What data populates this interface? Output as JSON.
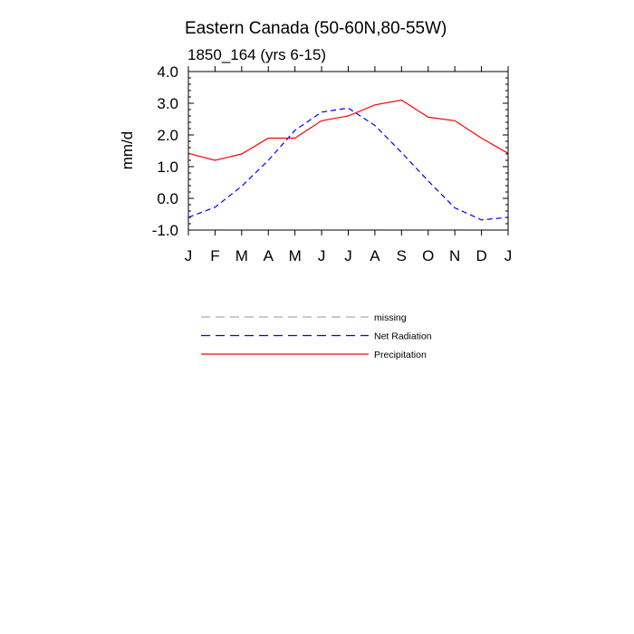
{
  "chart_data": {
    "type": "line",
    "title": "Eastern Canada (50-60N,80-55W)",
    "subtitle": "1850_164 (yrs 6-15)",
    "ylabel": "mm/d",
    "xlabel": "",
    "categories": [
      "J",
      "F",
      "M",
      "A",
      "M",
      "J",
      "J",
      "A",
      "S",
      "O",
      "N",
      "D",
      "J"
    ],
    "ylim": [
      -1.0,
      4.0
    ],
    "yticks": [
      "4.0",
      "3.0",
      "2.0",
      "1.0",
      "0.0",
      "-1.0"
    ],
    "ytick_values": [
      4.0,
      3.0,
      2.0,
      1.0,
      0.0,
      -1.0
    ],
    "grid": false,
    "legend_position": "bottom",
    "series": [
      {
        "name": "Net Radiation",
        "color": "#0000ff",
        "dash": "dashed",
        "values": [
          -0.6,
          -0.28,
          0.38,
          1.2,
          2.15,
          2.72,
          2.85,
          2.3,
          1.45,
          0.55,
          -0.3,
          -0.68,
          -0.6
        ]
      },
      {
        "name": "Precipitation",
        "color": "#ff0000",
        "dash": "solid",
        "values": [
          1.42,
          1.2,
          1.4,
          1.9,
          1.9,
          2.45,
          2.6,
          2.95,
          3.1,
          2.56,
          2.45,
          1.9,
          1.42
        ]
      }
    ],
    "legend": [
      {
        "label": "missing",
        "color": "#aaaaaa",
        "dash": "dashed"
      },
      {
        "label": "Net Radiation",
        "color": "#0000ff",
        "dash": "dashed"
      },
      {
        "label": "Precipitation",
        "color": "#ff0000",
        "dash": "solid"
      }
    ]
  }
}
